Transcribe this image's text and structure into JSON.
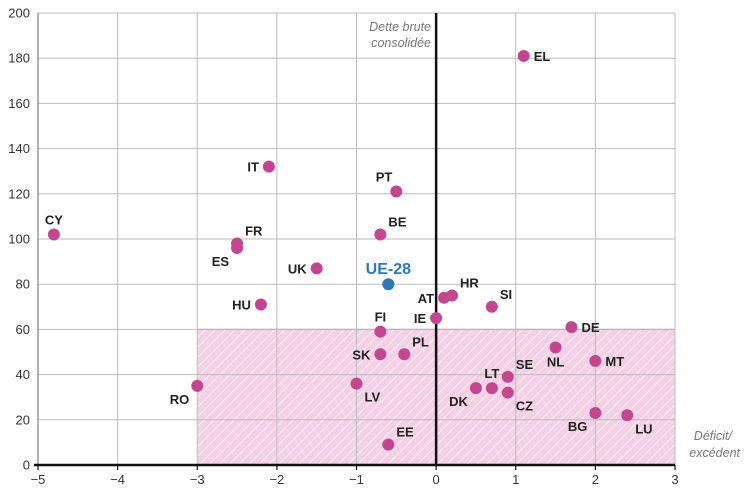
{
  "chart_data": {
    "type": "scatter",
    "title": "",
    "xlabel": [
      "Déficit/",
      "excédent"
    ],
    "ylabel": [
      "Dette brute",
      "consolidée"
    ],
    "xlim": [
      -5,
      3
    ],
    "ylim": [
      0,
      200
    ],
    "xticks": [
      -5,
      -4,
      -3,
      -2,
      -1,
      0,
      1,
      2,
      3
    ],
    "yticks": [
      0,
      20,
      40,
      60,
      80,
      100,
      120,
      140,
      160,
      180,
      200
    ],
    "xtick_labels": [
      "−5",
      "−4",
      "−3",
      "−2",
      "−1",
      "0",
      "1",
      "2",
      "3"
    ],
    "ytick_labels": [
      "0",
      "20",
      "40",
      "60",
      "80",
      "100",
      "120",
      "140",
      "160",
      "180",
      "200"
    ],
    "grid": true,
    "reference_zone": {
      "xmin": -3,
      "xmax": 3,
      "ymin": 0,
      "ymax": 60,
      "color": "#f3d0e4",
      "hatch": true
    },
    "colors": {
      "point": "#c2478f",
      "highlight": "#2f78b7",
      "axis": "#111111",
      "grid": "#bbbbbb"
    },
    "points": [
      {
        "label": "EL",
        "x": 1.1,
        "y": 181,
        "lpos": "right"
      },
      {
        "label": "IT",
        "x": -2.1,
        "y": 132,
        "lpos": "left"
      },
      {
        "label": "PT",
        "x": -0.5,
        "y": 121,
        "lpos": "above-left"
      },
      {
        "label": "CY",
        "x": -4.8,
        "y": 102,
        "lpos": "above"
      },
      {
        "label": "BE",
        "x": -0.7,
        "y": 102,
        "lpos": "above-right"
      },
      {
        "label": "FR",
        "x": -2.5,
        "y": 98,
        "lpos": "above-right"
      },
      {
        "label": "ES",
        "x": -2.5,
        "y": 96,
        "lpos": "below-left"
      },
      {
        "label": "UK",
        "x": -1.5,
        "y": 87,
        "lpos": "left"
      },
      {
        "label": "UE-28",
        "x": -0.6,
        "y": 80,
        "lpos": "above",
        "highlight": true
      },
      {
        "label": "AT",
        "x": 0.1,
        "y": 74,
        "lpos": "left"
      },
      {
        "label": "HR",
        "x": 0.2,
        "y": 75,
        "lpos": "above-right"
      },
      {
        "label": "HU",
        "x": -2.2,
        "y": 71,
        "lpos": "left"
      },
      {
        "label": "SI",
        "x": 0.7,
        "y": 70,
        "lpos": "above-right"
      },
      {
        "label": "IE",
        "x": 0.0,
        "y": 65,
        "lpos": "left"
      },
      {
        "label": "DE",
        "x": 1.7,
        "y": 61,
        "lpos": "right"
      },
      {
        "label": "FI",
        "x": -0.7,
        "y": 59,
        "lpos": "above"
      },
      {
        "label": "NL",
        "x": 1.5,
        "y": 52,
        "lpos": "below"
      },
      {
        "label": "PL",
        "x": -0.4,
        "y": 49,
        "lpos": "above-right"
      },
      {
        "label": "SK",
        "x": -0.7,
        "y": 49,
        "lpos": "left"
      },
      {
        "label": "MT",
        "x": 2.0,
        "y": 46,
        "lpos": "right"
      },
      {
        "label": "SE",
        "x": 0.9,
        "y": 39,
        "lpos": "above-right"
      },
      {
        "label": "LV",
        "x": -1.0,
        "y": 36,
        "lpos": "below-right"
      },
      {
        "label": "RO",
        "x": -3.0,
        "y": 35,
        "lpos": "below-left"
      },
      {
        "label": "LT",
        "x": 0.7,
        "y": 34,
        "lpos": "above"
      },
      {
        "label": "DK",
        "x": 0.5,
        "y": 34,
        "lpos": "below-left"
      },
      {
        "label": "CZ",
        "x": 0.9,
        "y": 32,
        "lpos": "below-right"
      },
      {
        "label": "BG",
        "x": 2.0,
        "y": 23,
        "lpos": "below-left"
      },
      {
        "label": "LU",
        "x": 2.4,
        "y": 22,
        "lpos": "below-right"
      },
      {
        "label": "EE",
        "x": -0.6,
        "y": 9,
        "lpos": "above-right"
      }
    ]
  }
}
